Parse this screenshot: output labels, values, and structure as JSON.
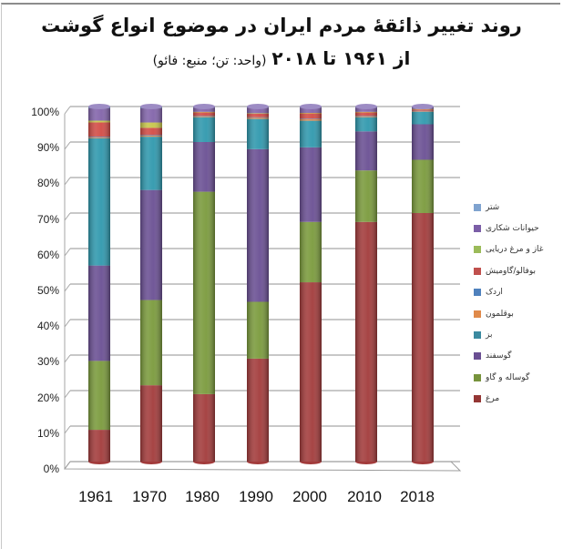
{
  "title": {
    "line1": "روند تغییر ذائقهٔ مردم ایران در موضوع انواع گوشت",
    "line2_prefix": "از ۱۹۶۱ تا ۲۰۱۸",
    "line2_note": "(واحد: تن؛ منبع: فائو)"
  },
  "chart_data": {
    "type": "bar",
    "stacked": "percent",
    "style": "3d-cylinder",
    "title": "روند تغییر ذائقهٔ مردم ایران در موضوع انواع گوشت از ۱۹۶۱ تا ۲۰۱۸ (واحد: تن؛ منبع: فائو)",
    "xlabel": "",
    "ylabel": "",
    "ylim": [
      0,
      100
    ],
    "yticks": [
      "0%",
      "10%",
      "20%",
      "30%",
      "40%",
      "50%",
      "60%",
      "70%",
      "80%",
      "90%",
      "100%"
    ],
    "grid": true,
    "legend_position": "right",
    "categories": [
      "1961",
      "1970",
      "1980",
      "1990",
      "2000",
      "2010",
      "2018"
    ],
    "series": [
      {
        "name": "مرغ",
        "color": "#a23b3b",
        "values": [
          9,
          21.5,
          19,
          29,
          50.5,
          67.5,
          70
        ]
      },
      {
        "name": "گوساله و گاو",
        "color": "#7a9a3c",
        "values": [
          19.5,
          24,
          57,
          16,
          17,
          14.5,
          15
        ]
      },
      {
        "name": "گوسفند",
        "color": "#6a4f93",
        "values": [
          27,
          31,
          14,
          43,
          21,
          11,
          10
        ]
      },
      {
        "name": "بز",
        "color": "#2f98ad",
        "values": [
          36,
          15,
          7,
          8.5,
          7.5,
          4,
          3.5
        ]
      },
      {
        "name": "بوقلمون",
        "color": "#e0874a",
        "values": [
          0.3,
          0.3,
          0.3,
          0.4,
          0.5,
          0.3,
          0.2
        ]
      },
      {
        "name": "اردک",
        "color": "#4f74b0",
        "values": [
          0.2,
          0.2,
          0.1,
          0.1,
          0.1,
          0.1,
          0.1
        ]
      },
      {
        "name": "بوفالو/گاومیش",
        "color": "#d24b45",
        "values": [
          4,
          2,
          1,
          1,
          1.5,
          1,
          0.4
        ]
      },
      {
        "name": "غاز و مرغ دریایی",
        "color": "#c7c64a",
        "values": [
          0.5,
          1.5,
          0.1,
          0.1,
          0.1,
          0.1,
          0.1
        ]
      },
      {
        "name": "حیوانات شکاری",
        "color": "#8264aa",
        "values": [
          3.5,
          4,
          1.2,
          1.6,
          1.5,
          1.2,
          0.5
        ]
      },
      {
        "name": "شتر",
        "color": "#7fa3cf",
        "values": [
          0.5,
          0.5,
          0.3,
          0.3,
          0.3,
          0.3,
          0.2
        ]
      }
    ]
  },
  "legend": {
    "items": [
      {
        "label": "شتر",
        "color": "#7fa3cf"
      },
      {
        "label": "حیوانات شکاری",
        "color": "#7b5ea7"
      },
      {
        "label": "غاز و مرغ دریایی",
        "color": "#9bbb59"
      },
      {
        "label": "بوفالو/گاومیش",
        "color": "#c0504d"
      },
      {
        "label": "اردک",
        "color": "#4f81bd"
      },
      {
        "label": "بوقلمون",
        "color": "#e08a4a"
      },
      {
        "label": "بز",
        "color": "#3b8aa0"
      },
      {
        "label": "گوسفند",
        "color": "#6a4f93"
      },
      {
        "label": "گوساله و گاو",
        "color": "#77933c"
      },
      {
        "label": "مرغ",
        "color": "#943634"
      }
    ]
  }
}
